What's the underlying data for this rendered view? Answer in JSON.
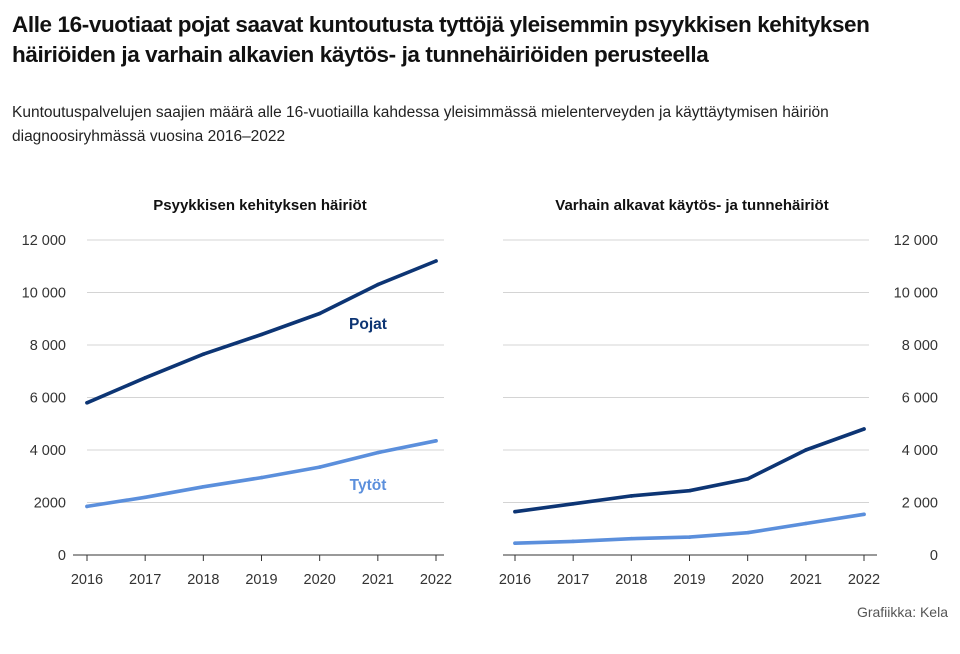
{
  "title": "Alle 16-vuotiaat pojat saavat kuntoutusta tyttöjä yleisemmin psyykkisen kehityksen häiriöiden ja varhain alkavien käytös- ja tunnehäiriöiden perusteella",
  "subtitle": "Kuntoutuspalvelujen saajien määrä alle 16-vuotiailla kahdessa yleisimmässä mielenterveyden ja käyttäytymisen häiriön diagnoosiryhmässä vuosina 2016–2022",
  "source": "Grafiikka: Kela",
  "colors": {
    "boys": "#0d3574",
    "girls": "#5b8fdc",
    "grid": "#d4d4d4",
    "axis": "#333333"
  },
  "chart_data": [
    {
      "type": "line",
      "title": "Psyykkisen kehityksen häiriöt",
      "x": [
        "2016",
        "2017",
        "2018",
        "2019",
        "2020",
        "2021",
        "2022"
      ],
      "ylim": [
        0,
        12000
      ],
      "yticks": [
        0,
        2000,
        4000,
        6000,
        8000,
        10000,
        12000
      ],
      "ytick_labels": [
        "0",
        "2000",
        "4 000",
        "6 000",
        "8 000",
        "10 000",
        "12 000"
      ],
      "y_axis_side": "left",
      "grid": true,
      "series": [
        {
          "name": "Pojat",
          "color": "#0d3574",
          "values": [
            5800,
            6750,
            7650,
            8400,
            9200,
            10300,
            11200
          ],
          "label": "Pojat"
        },
        {
          "name": "Tytöt",
          "color": "#5b8fdc",
          "values": [
            1850,
            2200,
            2600,
            2950,
            3350,
            3900,
            4350
          ],
          "label": "Tytöt"
        }
      ]
    },
    {
      "type": "line",
      "title": "Varhain alkavat käytös- ja tunnehäiriöt",
      "x": [
        "2016",
        "2017",
        "2018",
        "2019",
        "2020",
        "2021",
        "2022"
      ],
      "ylim": [
        0,
        12000
      ],
      "yticks": [
        0,
        2000,
        4000,
        6000,
        8000,
        10000,
        12000
      ],
      "ytick_labels": [
        "0",
        "2 000",
        "4 000",
        "6 000",
        "8 000",
        "10 000",
        "12 000"
      ],
      "y_axis_side": "right",
      "grid": true,
      "series": [
        {
          "name": "Pojat",
          "color": "#0d3574",
          "values": [
            1650,
            1950,
            2250,
            2450,
            2900,
            4000,
            4800
          ]
        },
        {
          "name": "Tytöt",
          "color": "#5b8fdc",
          "values": [
            450,
            520,
            620,
            680,
            850,
            1200,
            1550
          ]
        }
      ]
    }
  ]
}
